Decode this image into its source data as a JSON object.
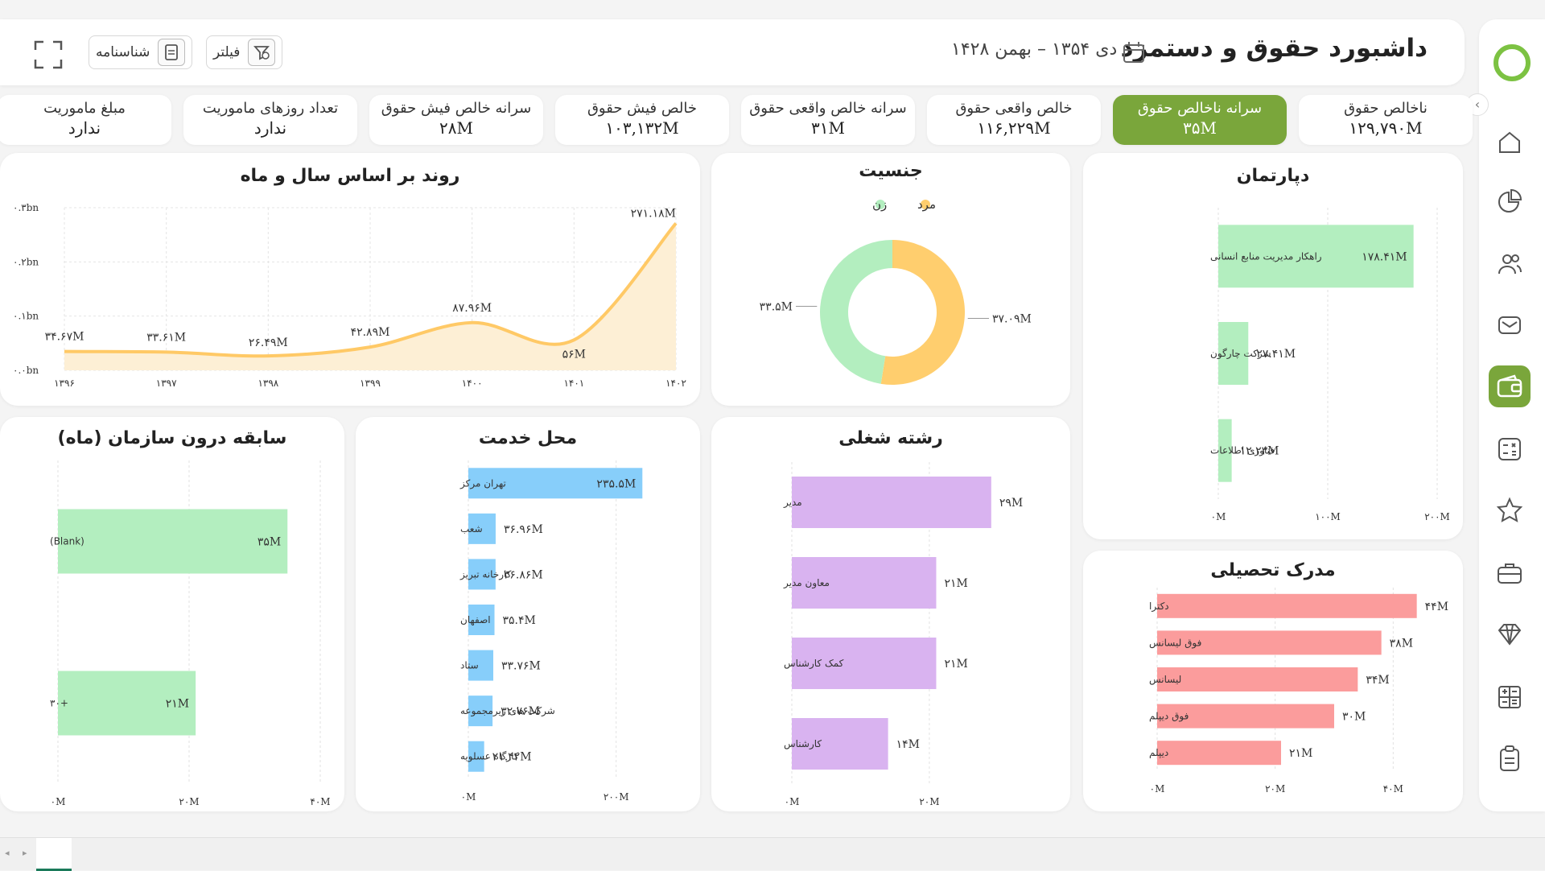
{
  "header": {
    "title": "داشبورد حقوق و دستمزد",
    "date_range": "دی ۱۳۵۴ – بهمن ۱۴۲۸",
    "filter_label": "فیلتر",
    "id_card_label": "شناسنامه"
  },
  "kpis": [
    {
      "label": "ناخالص حقوق",
      "value": "۱۲۹,۷۹۰M",
      "active": false
    },
    {
      "label": "سرانه ناخالص حقوق",
      "value": "۳۵M",
      "active": true
    },
    {
      "label": "خالص واقعی حقوق",
      "value": "۱۱۶,۲۲۹M",
      "active": false
    },
    {
      "label": "سرانه خالص واقعی حقوق",
      "value": "۳۱M",
      "active": false
    },
    {
      "label": "خالص فیش حقوق",
      "value": "۱۰۳,۱۳۲M",
      "active": false
    },
    {
      "label": "سرانه خالص فیش حقوق",
      "value": "۲۸M",
      "active": false
    },
    {
      "label": "تعداد روزهای ماموریت",
      "value": "ندارد",
      "active": false
    },
    {
      "label": "مبلغ ماموریت",
      "value": "ندارد",
      "active": false
    }
  ],
  "colors": {
    "accent": "#7aa63b",
    "line": "#ffc966",
    "area": "#fdefd5",
    "green_bar": "#b3eebf",
    "blue_bar": "#87cefa",
    "purple_bar": "#d9b3f0",
    "red_bar": "#fb9c9c",
    "female": "#b3eebf",
    "male": "#ffce6e"
  },
  "nav_icons": [
    "home-icon",
    "pie-chart-icon",
    "users-icon",
    "mail-icon",
    "wallet-icon",
    "calc-list-icon",
    "star-icon",
    "briefcase-icon",
    "diamond-icon",
    "calculator-icon",
    "clipboard-icon"
  ],
  "chart_data": [
    {
      "id": "trend",
      "type": "area",
      "title": "روند بر اساس سال و ماه",
      "categories": [
        "۱۳۹۶",
        "۱۳۹۷",
        "۱۳۹۸",
        "۱۳۹۹",
        "۱۴۰۰",
        "۱۴۰۱",
        "۱۴۰۲"
      ],
      "values": [
        34.67,
        33.61,
        26.49,
        42.89,
        87.96,
        56,
        271.18
      ],
      "value_labels": [
        "۳۴.۶۷M",
        "۳۳.۶۱M",
        "۲۶.۴۹M",
        "۴۲.۸۹M",
        "۸۷.۹۶M",
        "۵۶M",
        "۲۷۱.۱۸M"
      ],
      "y_ticks": [
        0,
        100,
        200,
        300
      ],
      "y_tick_labels": [
        "۰.۰bn",
        "۰.۱bn",
        "۰.۲bn",
        "۰.۳bn"
      ],
      "ylim": [
        0,
        300
      ]
    },
    {
      "id": "gender",
      "type": "pie",
      "title": "جنسیت",
      "legend": [
        {
          "name": "مرد",
          "color": "#ffce6e"
        },
        {
          "name": "زن",
          "color": "#b3eebf"
        }
      ],
      "slices": [
        {
          "name": "مرد",
          "value": 37.09,
          "label": "۳۷.۰۹M",
          "color": "#ffce6e"
        },
        {
          "name": "زن",
          "value": 33.5,
          "label": "۳۳.۵M",
          "color": "#b3eebf"
        }
      ]
    },
    {
      "id": "department",
      "type": "bar",
      "title": "دپارتمان",
      "categories": [
        "راهکار مدیریت منابع انسانی",
        "شرکت چارگون",
        "فناوری اطلاعات"
      ],
      "values": [
        178.41,
        27.41,
        12.23
      ],
      "value_labels": [
        "۱۷۸.۴۱M",
        "۲۷.۴۱M",
        "۱۲.۲۳M"
      ],
      "x_ticks": [
        0,
        100,
        200
      ],
      "x_tick_labels": [
        "۰M",
        "۱۰۰M",
        "۲۰۰M"
      ],
      "xlim": [
        0,
        200
      ],
      "color": "#b3eebf"
    },
    {
      "id": "tenure",
      "type": "bar",
      "title": "سابقه درون سازمان (ماه)",
      "categories": [
        "(Blank)",
        "+۳۰"
      ],
      "values": [
        35,
        21
      ],
      "value_labels": [
        "۳۵M",
        "۲۱M"
      ],
      "x_ticks": [
        0,
        20,
        40
      ],
      "x_tick_labels": [
        "۰M",
        "۲۰M",
        "۴۰M"
      ],
      "xlim": [
        0,
        40
      ],
      "color": "#b3eebf"
    },
    {
      "id": "location",
      "type": "bar",
      "title": "محل خدمت",
      "categories": [
        "تهران مرکز",
        "شعب",
        "کارخانه تبریز",
        "اصفهان",
        "ستاد",
        "شرکت های زیرمجموعه",
        "کارگاه عسلویه"
      ],
      "values": [
        235.5,
        36.96,
        36.86,
        35.4,
        33.76,
        32.76,
        21.42
      ],
      "value_labels": [
        "۲۳۵.۵M",
        "۳۶.۹۶M",
        "۳۶.۸۶M",
        "۳۵.۴M",
        "۳۳.۷۶M",
        "۳۲.۷۶M",
        "۲۱.۴۲M"
      ],
      "x_ticks": [
        0,
        200
      ],
      "x_tick_labels": [
        "۰M",
        "۲۰۰M"
      ],
      "xlim": [
        0,
        270
      ],
      "color": "#87cefa"
    },
    {
      "id": "job",
      "type": "bar",
      "title": "رشته شغلی",
      "categories": [
        "مدیر",
        "معاون مدیر",
        "کمک کارشناس",
        "کارشناس"
      ],
      "values": [
        29,
        21,
        21,
        14
      ],
      "value_labels": [
        "۲۹M",
        "۲۱M",
        "۲۱M",
        "۱۴M"
      ],
      "x_ticks": [
        0,
        20
      ],
      "x_tick_labels": [
        "۰M",
        "۲۰M"
      ],
      "xlim": [
        0,
        33
      ],
      "color": "#d9b3f0"
    },
    {
      "id": "degree",
      "type": "bar",
      "title": "مدرک تحصیلی",
      "categories": [
        "دکترا",
        "فوق لیسانس",
        "لیسانس",
        "فوق دیپلم",
        "دیپلم"
      ],
      "values": [
        44,
        38,
        34,
        30,
        21
      ],
      "value_labels": [
        "۴۴M",
        "۳۸M",
        "۳۴M",
        "۳۰M",
        "۲۱M"
      ],
      "x_ticks": [
        0,
        20,
        40
      ],
      "x_tick_labels": [
        "۰M",
        "۲۰M",
        "۴۰M"
      ],
      "xlim": [
        0,
        48
      ],
      "color": "#fb9c9c"
    }
  ]
}
